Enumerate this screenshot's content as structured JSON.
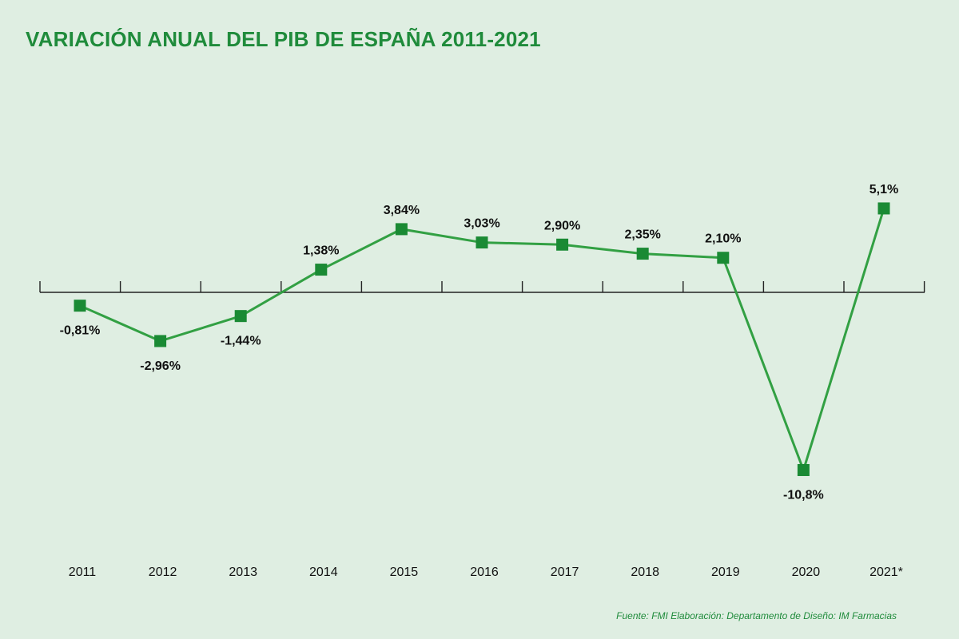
{
  "title": "VARIACIÓN ANUAL DEL PIB DE ESPAÑA 2011-2021",
  "source": "Fuente: FMI  Elaboración: Departamento de Diseño: IM Farmacias",
  "colors": {
    "background": "#dfeee2",
    "accent": "#1f8b3b",
    "line": "#32a043",
    "marker": "#1a8a34",
    "axis": "#222222",
    "text": "#111111"
  },
  "chart_data": {
    "type": "line",
    "title": "VARIACIÓN ANUAL DEL PIB DE ESPAÑA 2011-2021",
    "categories": [
      "2011",
      "2012",
      "2013",
      "2014",
      "2015",
      "2016",
      "2017",
      "2018",
      "2019",
      "2020",
      "2021*"
    ],
    "values": [
      -0.81,
      -2.96,
      -1.44,
      1.38,
      3.84,
      3.03,
      2.9,
      2.35,
      2.1,
      -10.8,
      5.1
    ],
    "data_labels": [
      "-0,81%",
      "-2,96%",
      "-1,44%",
      "1,38%",
      "3,84%",
      "3,03%",
      "2,90%",
      "2,35%",
      "2,10%",
      "-10,8%",
      "5,1%"
    ],
    "xlabel": "",
    "ylabel": "",
    "ylim": [
      -12,
      7
    ],
    "grid": false,
    "legend": "none",
    "marker": "square"
  }
}
